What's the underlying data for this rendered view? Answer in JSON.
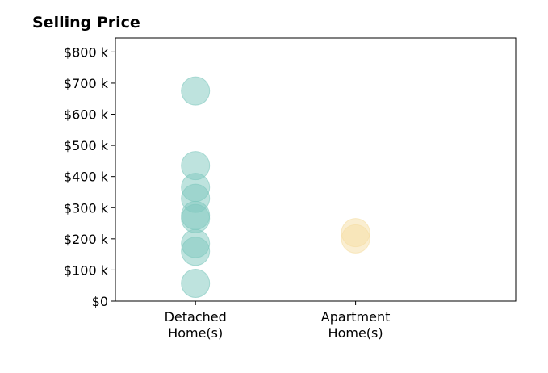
{
  "chart_data": {
    "type": "scatter",
    "title": "Selling Price",
    "xlabel": "",
    "ylabel": "",
    "categories": [
      "Detached\nHome(s)",
      "Apartment\nHome(s)"
    ],
    "y_ticks": [
      "$0",
      "$100 k",
      "$200 k",
      "$300 k",
      "$400 k",
      "$500 k",
      "$600 k",
      "$700 k",
      "$800 k"
    ],
    "y_tick_values": [
      0,
      100000,
      200000,
      300000,
      400000,
      500000,
      600000,
      700000,
      800000
    ],
    "ylim": [
      0,
      845000
    ],
    "x_range": [
      -0.5,
      2.0
    ],
    "grid": false,
    "series": [
      {
        "category_index": 0,
        "color": "#7ec8be",
        "values": [
          675000,
          435000,
          365000,
          330000,
          275000,
          265000,
          185000,
          160000,
          57000
        ]
      },
      {
        "category_index": 1,
        "color": "#f5dda3",
        "values": [
          220000,
          200000
        ]
      }
    ]
  }
}
